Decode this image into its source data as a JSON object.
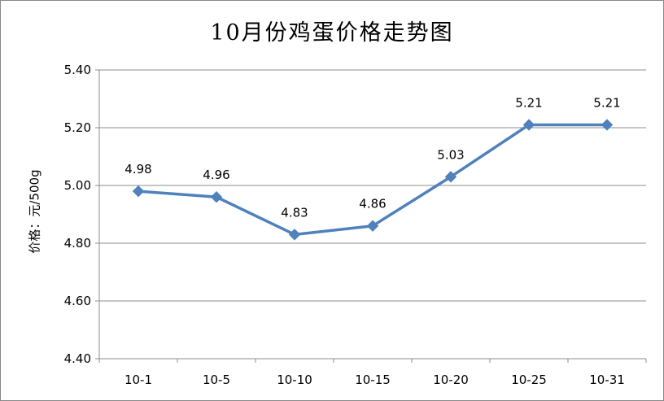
{
  "chart_data": {
    "type": "line",
    "title": "10月份鸡蛋价格走势图",
    "xlabel": "",
    "ylabel": "价格：元/500g",
    "categories": [
      "10-1",
      "10-5",
      "10-10",
      "10-15",
      "10-20",
      "10-25",
      "10-31"
    ],
    "series": [
      {
        "values": [
          4.98,
          4.96,
          4.83,
          4.86,
          5.03,
          5.21,
          5.21
        ]
      }
    ],
    "data_labels": [
      "4.98",
      "4.96",
      "4.83",
      "4.86",
      "5.03",
      "5.21",
      "5.21"
    ],
    "ylim": [
      4.4,
      5.4
    ],
    "yticks": [
      4.4,
      4.6,
      4.8,
      5.0,
      5.2,
      5.4
    ],
    "ytick_labels": [
      "4.40",
      "4.60",
      "4.80",
      "5.00",
      "5.20",
      "5.40"
    ],
    "grid": true,
    "legend": "none",
    "series_color": "#4F81BD",
    "marker": "diamond"
  }
}
